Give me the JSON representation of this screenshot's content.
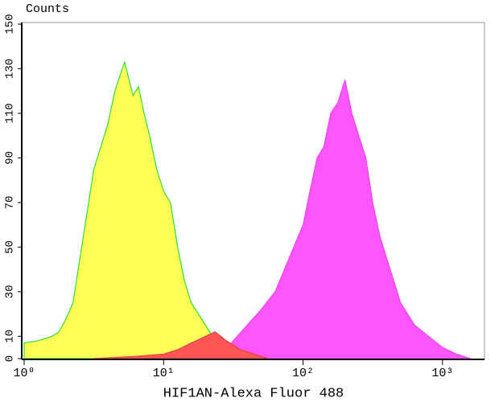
{
  "chart_data": {
    "type": "area",
    "y_title": "Counts",
    "x_title": "HIF1AN-Alexa Fluor 488",
    "x_scale": "log",
    "xlim": [
      1,
      2000
    ],
    "ylim": [
      0,
      150
    ],
    "xticks": [
      {
        "value": 1,
        "label": "10⁰"
      },
      {
        "value": 10,
        "label": "10¹"
      },
      {
        "value": 100,
        "label": "10²"
      },
      {
        "value": 1000,
        "label": "10³"
      }
    ],
    "yticks": [
      0,
      10,
      30,
      50,
      70,
      90,
      110,
      130,
      150
    ],
    "series": [
      {
        "color": "#ffff55",
        "edge": "#33dd33",
        "x": [
          1,
          1.26,
          1.58,
          1.78,
          2,
          2.24,
          2.51,
          2.82,
          3.16,
          3.55,
          3.98,
          4.47,
          5.25,
          6.03,
          6.61,
          7.24,
          7.94,
          8.91,
          10,
          11.2,
          12.6,
          14.1,
          15.8,
          20,
          22.4,
          28.2,
          35.5,
          44.7,
          56.2,
          70.8
        ],
        "values": [
          7,
          8,
          10,
          12,
          18,
          25,
          45,
          65,
          85,
          95,
          105,
          120,
          133,
          118,
          122,
          110,
          100,
          85,
          75,
          70,
          50,
          35,
          25,
          15,
          10,
          5,
          5,
          3,
          2,
          0
        ]
      },
      {
        "color": "#ff55ff",
        "edge": "#ee44ee",
        "x": [
          25.1,
          31.6,
          39.8,
          50.1,
          63.1,
          79.4,
          100,
          112,
          126,
          141,
          158,
          178,
          200,
          224,
          251,
          282,
          316,
          355,
          398,
          501,
          631,
          794,
          1000,
          1259,
          1585
        ],
        "values": [
          0,
          8,
          15,
          22,
          30,
          45,
          60,
          75,
          90,
          95,
          110,
          115,
          125,
          110,
          100,
          90,
          70,
          55,
          45,
          25,
          15,
          10,
          5,
          2,
          0
        ]
      },
      {
        "color": "#ff5555",
        "edge": "#dd4444",
        "x": [
          3.16,
          6.31,
          10,
          12.6,
          15.8,
          20,
          23.4,
          28.2,
          35.5,
          44.7,
          56.2
        ],
        "values": [
          0,
          1,
          2,
          4,
          7,
          10,
          12,
          8,
          4,
          2,
          0
        ]
      }
    ]
  }
}
